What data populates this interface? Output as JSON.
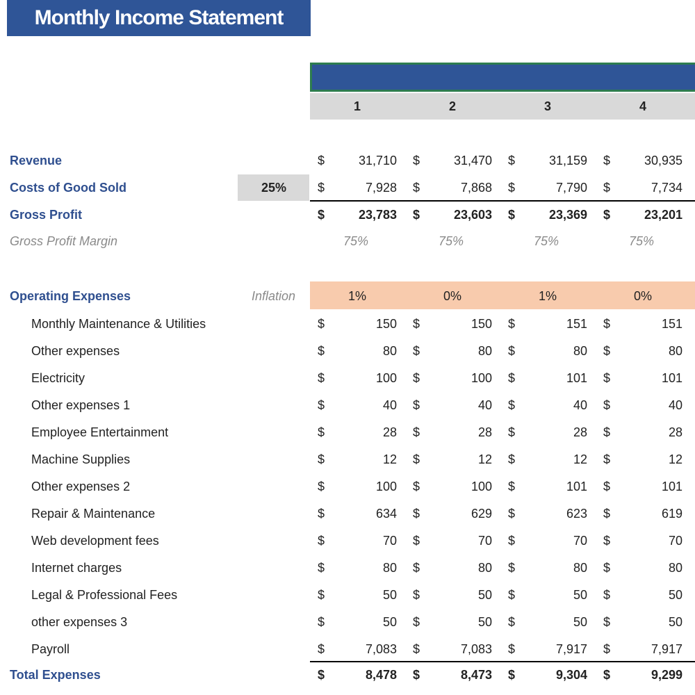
{
  "title": "Monthly Income Statement",
  "columns": [
    "1",
    "2",
    "3",
    "4"
  ],
  "currency": "$",
  "revenue": {
    "label": "Revenue",
    "values": [
      "31,710",
      "31,470",
      "31,159",
      "30,935"
    ]
  },
  "cogs": {
    "label": "Costs of Good Sold",
    "rate": "25%",
    "values": [
      "7,928",
      "7,868",
      "7,790",
      "7,734"
    ]
  },
  "gross_profit": {
    "label": "Gross Profit",
    "values": [
      "23,783",
      "23,603",
      "23,369",
      "23,201"
    ]
  },
  "gross_profit_margin": {
    "label": "Gross Profit Margin",
    "values": [
      "75%",
      "75%",
      "75%",
      "75%"
    ]
  },
  "operating_expenses": {
    "label": "Operating Expenses",
    "note": "Inflation",
    "inflation": [
      "1%",
      "0%",
      "1%",
      "0%"
    ]
  },
  "expenses": [
    {
      "label": "Monthly Maintenance & Utilities",
      "values": [
        "150",
        "150",
        "151",
        "151"
      ]
    },
    {
      "label": "Other expenses",
      "values": [
        "80",
        "80",
        "80",
        "80"
      ]
    },
    {
      "label": "Electricity",
      "values": [
        "100",
        "100",
        "101",
        "101"
      ]
    },
    {
      "label": "Other expenses 1",
      "values": [
        "40",
        "40",
        "40",
        "40"
      ]
    },
    {
      "label": "Employee Entertainment",
      "values": [
        "28",
        "28",
        "28",
        "28"
      ]
    },
    {
      "label": "Machine Supplies",
      "values": [
        "12",
        "12",
        "12",
        "12"
      ]
    },
    {
      "label": "Other expenses 2",
      "values": [
        "100",
        "100",
        "101",
        "101"
      ]
    },
    {
      "label": "Repair & Maintenance",
      "values": [
        "634",
        "629",
        "623",
        "619"
      ]
    },
    {
      "label": "Web development fees",
      "values": [
        "70",
        "70",
        "70",
        "70"
      ]
    },
    {
      "label": "Internet charges",
      "values": [
        "80",
        "80",
        "80",
        "80"
      ]
    },
    {
      "label": "Legal & Professional Fees",
      "values": [
        "50",
        "50",
        "50",
        "50"
      ]
    },
    {
      "label": "other expenses 3",
      "values": [
        "50",
        "50",
        "50",
        "50"
      ]
    },
    {
      "label": "Payroll",
      "values": [
        "7,083",
        "7,083",
        "7,917",
        "7,917"
      ]
    }
  ],
  "total_expenses": {
    "label": "Total Expenses",
    "values": [
      "8,478",
      "8,473",
      "9,304",
      "9,299"
    ]
  }
}
